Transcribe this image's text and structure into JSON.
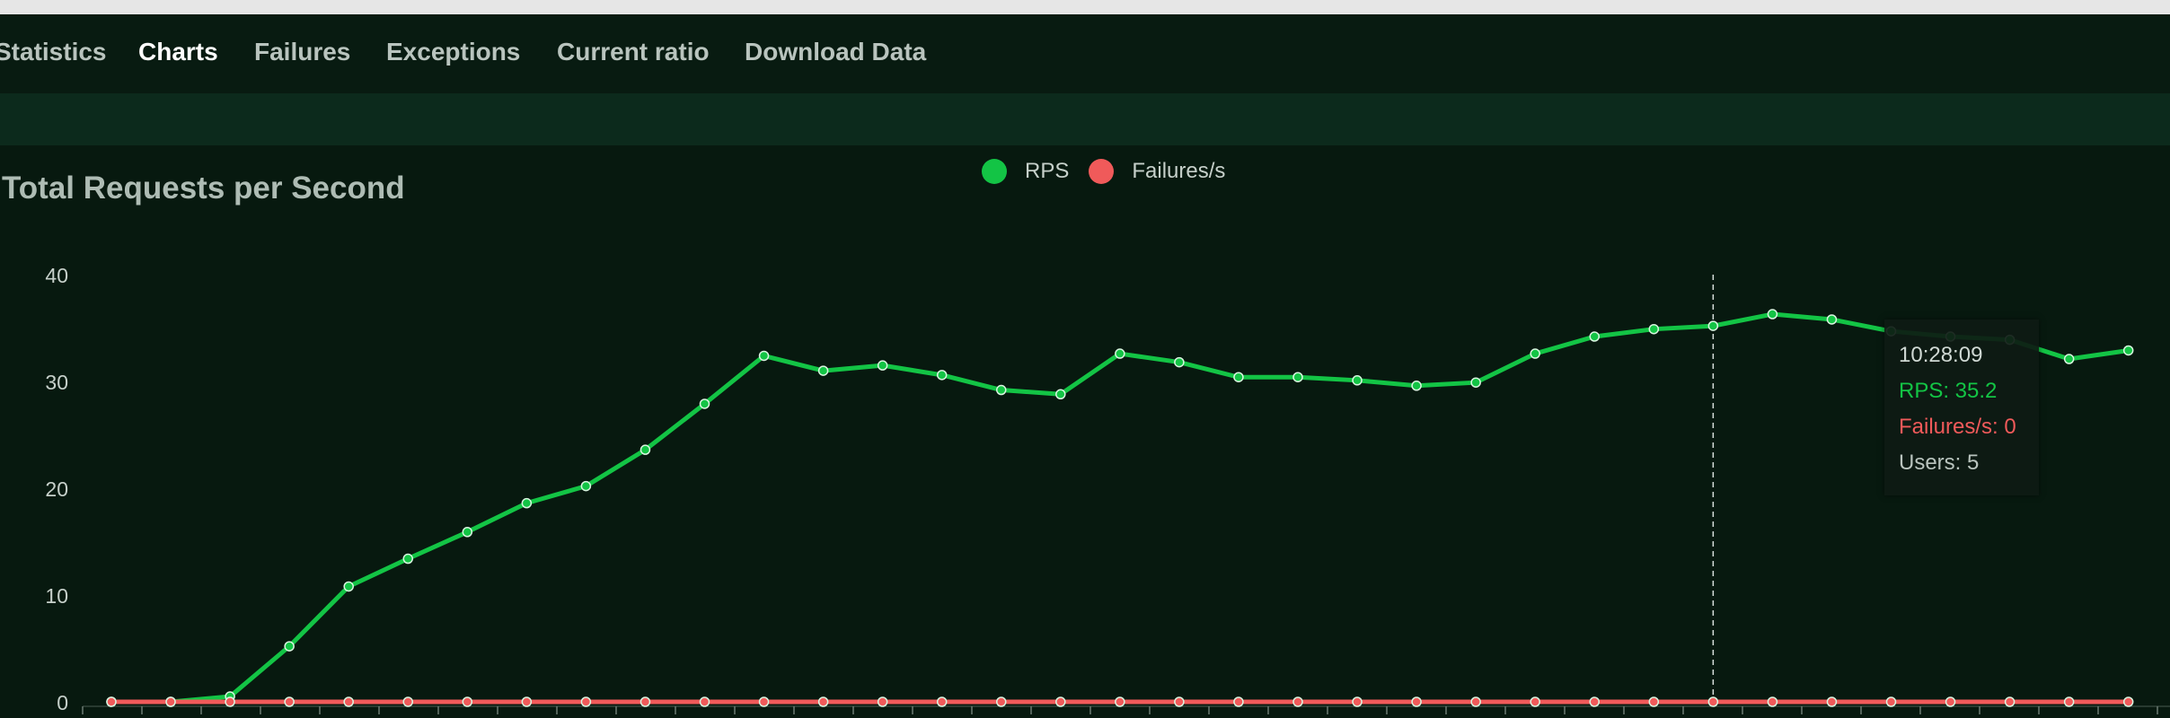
{
  "tabs": [
    {
      "label": "Statistics",
      "active": false
    },
    {
      "label": "Charts",
      "active": true
    },
    {
      "label": "Failures",
      "active": false
    },
    {
      "label": "Exceptions",
      "active": false
    },
    {
      "label": "Current ratio",
      "active": false
    },
    {
      "label": "Download Data",
      "active": false
    }
  ],
  "colors": {
    "rps": "#13c445",
    "failures": "#f05a5a"
  },
  "tooltip": {
    "time": "10:28:09",
    "rps": "RPS: 35.2",
    "failures": "Failures/s: 0",
    "users": "Users: 5"
  },
  "chart_data": {
    "type": "line",
    "title": "Total Requests per Second",
    "ylim": [
      0,
      40
    ],
    "yticks": [
      "0",
      "10",
      "20",
      "30",
      "40"
    ],
    "legend_position": "top-center",
    "series": [
      {
        "name": "RPS",
        "values": [
          0,
          0,
          0.5,
          5.2,
          10.8,
          13.4,
          15.9,
          18.6,
          20.2,
          23.6,
          27.9,
          32.4,
          31.0,
          31.5,
          30.6,
          29.2,
          28.8,
          32.6,
          31.8,
          30.4,
          30.4,
          30.1,
          29.6,
          29.9,
          32.6,
          34.2,
          34.9,
          35.2,
          36.3,
          35.8,
          34.7,
          34.2,
          33.9,
          32.1,
          32.9
        ]
      },
      {
        "name": "Failures/s",
        "values": [
          0,
          0,
          0,
          0,
          0,
          0,
          0,
          0,
          0,
          0,
          0,
          0,
          0,
          0,
          0,
          0,
          0,
          0,
          0,
          0,
          0,
          0,
          0,
          0,
          0,
          0,
          0,
          0,
          0,
          0,
          0,
          0,
          0,
          0,
          0
        ]
      }
    ],
    "highlight_index": 27
  }
}
